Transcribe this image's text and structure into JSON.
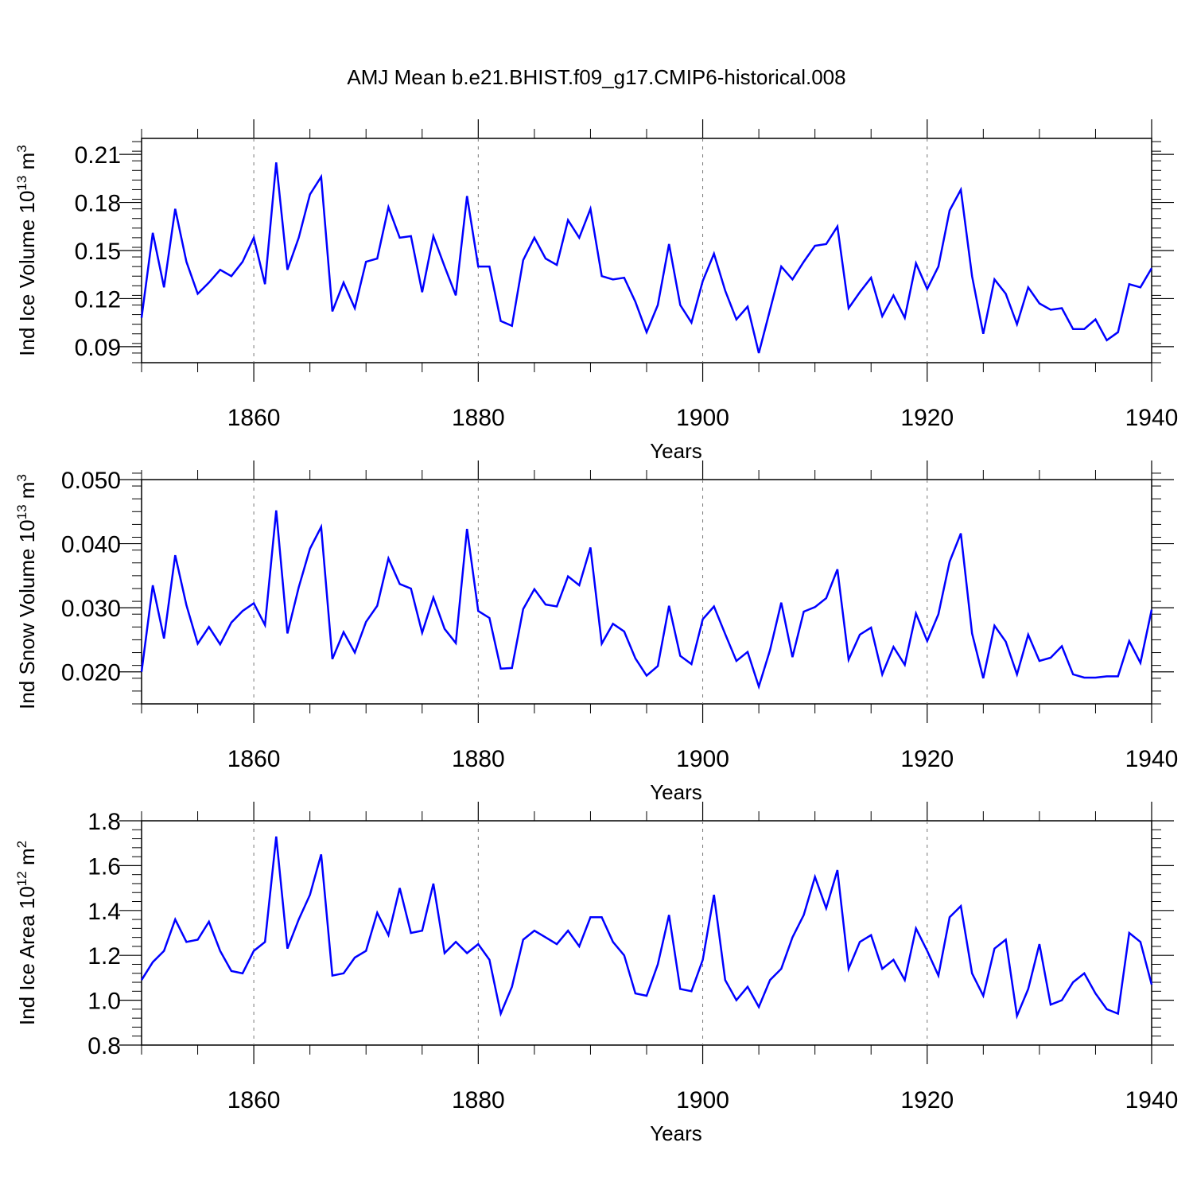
{
  "title": "AMJ Mean b.e21.BHIST.f09_g17.CMIP6-historical.008",
  "colors": {
    "line": "#0000ff",
    "axis": "#000000",
    "grid": "#777777"
  },
  "chart_data": [
    {
      "type": "line",
      "title": "",
      "xlabel": "Years",
      "ylabel": "Ind Ice Volume 10",
      "ylabel_exp": "13",
      "ylabel_unit": " m",
      "ylabel_unit_exp": "3",
      "xlim": [
        1850,
        1940
      ],
      "ylim": [
        0.08,
        0.22
      ],
      "xticks": [
        1860,
        1880,
        1900,
        1920,
        1940
      ],
      "xtick_labels": [
        "1860",
        "1880",
        "1900",
        "1920",
        "1940"
      ],
      "yticks": [
        0.09,
        0.12,
        0.15,
        0.18,
        0.21
      ],
      "ytick_labels": [
        "0.09",
        "0.12",
        "0.15",
        "0.18",
        "0.21"
      ],
      "grid": "vertical dashed at major x ticks",
      "series": [
        {
          "name": "Ind Ice Volume",
          "x_start": 1850,
          "values": [
            0.108,
            0.161,
            0.127,
            0.176,
            0.143,
            0.123,
            0.13,
            0.138,
            0.134,
            0.143,
            0.158,
            0.129,
            0.205,
            0.138,
            0.158,
            0.185,
            0.196,
            0.112,
            0.13,
            0.114,
            0.143,
            0.145,
            0.177,
            0.158,
            0.159,
            0.124,
            0.159,
            0.14,
            0.122,
            0.184,
            0.14,
            0.14,
            0.106,
            0.103,
            0.144,
            0.158,
            0.145,
            0.141,
            0.169,
            0.158,
            0.176,
            0.134,
            0.132,
            0.133,
            0.118,
            0.099,
            0.116,
            0.154,
            0.116,
            0.105,
            0.131,
            0.148,
            0.125,
            0.107,
            0.115,
            0.086,
            0.113,
            0.14,
            0.132,
            0.143,
            0.153,
            0.154,
            0.165,
            0.114,
            0.124,
            0.133,
            0.109,
            0.122,
            0.108,
            0.142,
            0.126,
            0.14,
            0.175,
            0.188,
            0.134,
            0.098,
            0.132,
            0.123,
            0.104,
            0.127,
            0.117,
            0.113,
            0.114,
            0.101,
            0.101,
            0.107,
            0.094,
            0.099,
            0.129,
            0.127,
            0.139
          ]
        }
      ]
    },
    {
      "type": "line",
      "title": "",
      "xlabel": "Years",
      "ylabel": "Ind Snow Volume 10",
      "ylabel_exp": "13",
      "ylabel_unit": " m",
      "ylabel_unit_exp": "3",
      "xlim": [
        1850,
        1940
      ],
      "ylim": [
        0.015,
        0.05
      ],
      "xticks": [
        1860,
        1880,
        1900,
        1920,
        1940
      ],
      "xtick_labels": [
        "1860",
        "1880",
        "1900",
        "1920",
        "1940"
      ],
      "yticks": [
        0.02,
        0.03,
        0.04,
        0.05
      ],
      "ytick_labels": [
        "0.020",
        "0.030",
        "0.040",
        "0.050"
      ],
      "grid": "vertical dashed at major x ticks",
      "series": [
        {
          "name": "Ind Snow Volume",
          "x_start": 1850,
          "values": [
            0.02,
            0.0335,
            0.0252,
            0.0382,
            0.0304,
            0.0244,
            0.027,
            0.0243,
            0.0277,
            0.0295,
            0.0307,
            0.0273,
            0.0452,
            0.026,
            0.0332,
            0.0392,
            0.0426,
            0.022,
            0.0262,
            0.023,
            0.0278,
            0.0303,
            0.0377,
            0.0337,
            0.033,
            0.0261,
            0.0316,
            0.0267,
            0.0245,
            0.0423,
            0.0295,
            0.0284,
            0.0205,
            0.0206,
            0.0298,
            0.0329,
            0.0305,
            0.0302,
            0.0349,
            0.0335,
            0.0394,
            0.0244,
            0.0275,
            0.0263,
            0.0221,
            0.0194,
            0.0209,
            0.0303,
            0.0225,
            0.0212,
            0.0282,
            0.0302,
            0.0259,
            0.0217,
            0.0231,
            0.0177,
            0.0234,
            0.0308,
            0.0223,
            0.0294,
            0.0301,
            0.0315,
            0.036,
            0.0219,
            0.0258,
            0.0269,
            0.0196,
            0.0239,
            0.0211,
            0.0291,
            0.0248,
            0.029,
            0.0372,
            0.0416,
            0.026,
            0.019,
            0.0272,
            0.0247,
            0.0196,
            0.0258,
            0.0217,
            0.0222,
            0.024,
            0.0196,
            0.0191,
            0.0191,
            0.0193,
            0.0193,
            0.0248,
            0.0214,
            0.0297
          ]
        }
      ]
    },
    {
      "type": "line",
      "title": "",
      "xlabel": "Years",
      "ylabel": "Ind Ice Area 10",
      "ylabel_exp": "12",
      "ylabel_unit": " m",
      "ylabel_unit_exp": "2",
      "xlim": [
        1850,
        1940
      ],
      "ylim": [
        0.8,
        1.8
      ],
      "xticks": [
        1860,
        1880,
        1900,
        1920,
        1940
      ],
      "xtick_labels": [
        "1860",
        "1880",
        "1900",
        "1920",
        "1940"
      ],
      "yticks": [
        0.8,
        1.0,
        1.2,
        1.4,
        1.6,
        1.8
      ],
      "ytick_labels": [
        "0.8",
        "1.0",
        "1.2",
        "1.4",
        "1.6",
        "1.8"
      ],
      "grid": "vertical dashed at major x ticks",
      "series": [
        {
          "name": "Ind Ice Area",
          "x_start": 1850,
          "values": [
            1.09,
            1.17,
            1.22,
            1.36,
            1.26,
            1.27,
            1.35,
            1.22,
            1.13,
            1.12,
            1.22,
            1.26,
            1.73,
            1.23,
            1.36,
            1.47,
            1.65,
            1.11,
            1.12,
            1.19,
            1.22,
            1.39,
            1.29,
            1.5,
            1.3,
            1.31,
            1.52,
            1.21,
            1.26,
            1.21,
            1.25,
            1.18,
            0.94,
            1.06,
            1.27,
            1.31,
            1.28,
            1.25,
            1.31,
            1.24,
            1.37,
            1.37,
            1.26,
            1.2,
            1.03,
            1.02,
            1.16,
            1.38,
            1.05,
            1.04,
            1.18,
            1.47,
            1.09,
            1.0,
            1.06,
            0.97,
            1.09,
            1.14,
            1.28,
            1.38,
            1.55,
            1.41,
            1.58,
            1.14,
            1.26,
            1.29,
            1.14,
            1.18,
            1.09,
            1.32,
            1.22,
            1.11,
            1.37,
            1.42,
            1.12,
            1.02,
            1.23,
            1.27,
            0.93,
            1.05,
            1.25,
            0.98,
            1.0,
            1.08,
            1.12,
            1.03,
            0.96,
            0.94,
            1.3,
            1.26,
            1.07
          ]
        }
      ]
    }
  ]
}
